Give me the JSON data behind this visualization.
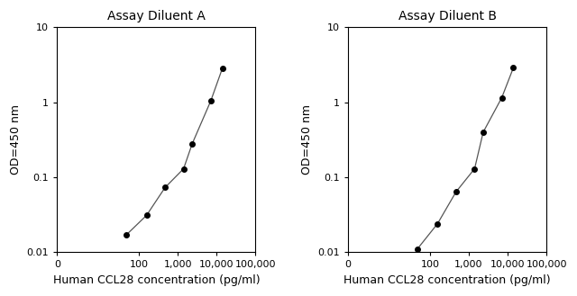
{
  "panel_A": {
    "title": "Assay Diluent A",
    "x": [
      46.9,
      156,
      469,
      1406,
      2344,
      7031,
      14063
    ],
    "y": [
      0.017,
      0.031,
      0.073,
      0.13,
      0.28,
      1.04,
      2.85
    ],
    "xlabel": "Human CCL28 concentration (pg/ml)",
    "ylabel": "OD=450 nm",
    "xlim": [
      0,
      100000
    ],
    "ylim": [
      0.01,
      10
    ],
    "xticks": [
      0,
      100,
      1000,
      10000,
      100000
    ],
    "xtick_labels": [
      "0",
      "100",
      "1,000",
      "10,000",
      "100,000"
    ],
    "yticks": [
      0.01,
      0.1,
      1,
      10
    ],
    "ytick_labels": [
      "0.01",
      "0.1",
      "1",
      "10"
    ]
  },
  "panel_B": {
    "title": "Assay Diluent B",
    "x": [
      46.9,
      156,
      469,
      1406,
      2344,
      7031,
      14063
    ],
    "y": [
      0.011,
      0.024,
      0.064,
      0.13,
      0.4,
      1.15,
      2.9
    ],
    "xlabel": "Human CCL28 concentration (pg/ml)",
    "ylabel": "OD=450 nm",
    "xlim": [
      0,
      100000
    ],
    "ylim": [
      0.01,
      10
    ],
    "xticks": [
      0,
      100,
      1000,
      10000,
      100000
    ],
    "xtick_labels": [
      "0",
      "100",
      "1,000",
      "10,000",
      "100,000"
    ],
    "yticks": [
      0.01,
      0.1,
      1,
      10
    ],
    "ytick_labels": [
      "0.01",
      "0.1",
      "1",
      "10"
    ]
  },
  "marker_color": "#000000",
  "line_color": "#555555",
  "marker_size": 4,
  "line_width": 0.9,
  "title_fontsize": 10,
  "label_fontsize": 9,
  "tick_fontsize": 8,
  "bg_color": "#ffffff",
  "symlog_linthresh": 10
}
